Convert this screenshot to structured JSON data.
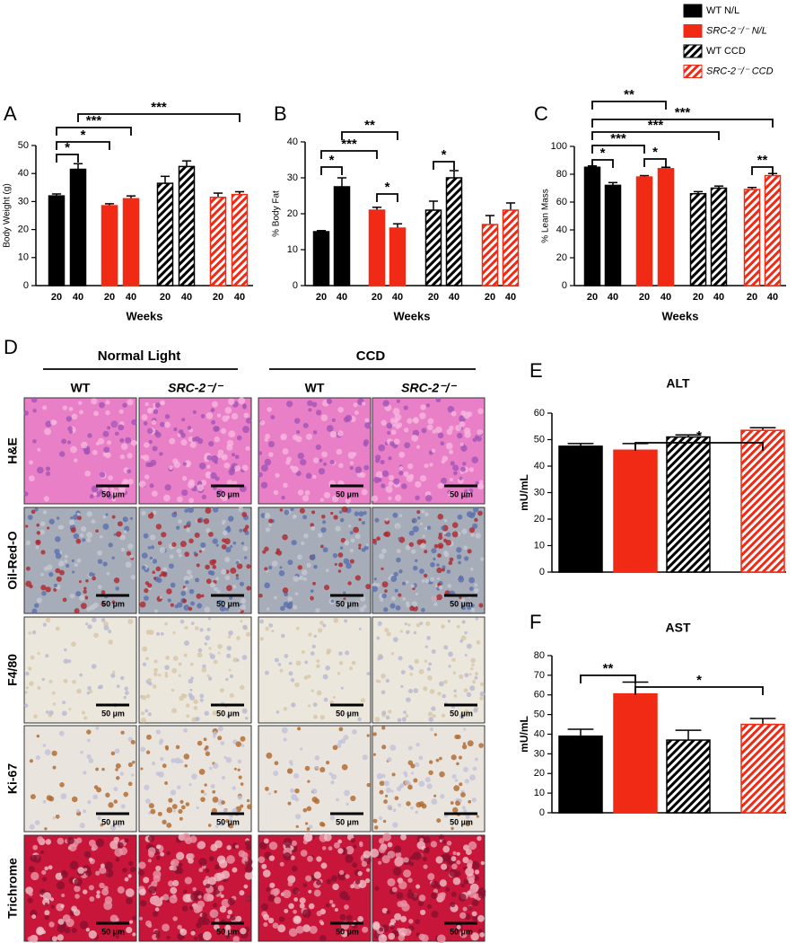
{
  "legend": [
    {
      "name": "WT N/L",
      "color": "#000000",
      "hatch": false
    },
    {
      "name": "SRC-2⁻/⁻ N/L",
      "color": "#f02a14",
      "hatch": false
    },
    {
      "name": "WT CCD",
      "color": "#000000",
      "hatch": true
    },
    {
      "name": "SRC-2⁻/⁻ CCD",
      "color": "#f02a14",
      "hatch": true
    }
  ],
  "chart_data": [
    {
      "type": "bar",
      "panel": "A",
      "ylabel": "Body Weight (g)",
      "xlabel": "Weeks",
      "categories": [
        "20",
        "40"
      ],
      "ylim": [
        0,
        50
      ],
      "yticks": [
        0,
        10,
        20,
        30,
        40,
        50
      ],
      "series": [
        {
          "values": [
            32,
            41.5
          ],
          "errors": [
            0.7,
            2
          ]
        },
        {
          "values": [
            28.5,
            31
          ],
          "errors": [
            0.7,
            1
          ]
        },
        {
          "values": [
            36.5,
            42.5
          ],
          "errors": [
            2.5,
            2
          ]
        },
        {
          "values": [
            31.5,
            32.5
          ],
          "errors": [
            1.5,
            1
          ]
        }
      ],
      "annotations": [
        "*",
        "*",
        "***",
        "***"
      ]
    },
    {
      "type": "bar",
      "panel": "B",
      "ylabel": "% Body Fat",
      "xlabel": "Weeks",
      "categories": [
        "20",
        "40"
      ],
      "ylim": [
        0,
        40
      ],
      "yticks": [
        0,
        10,
        20,
        30,
        40
      ],
      "series": [
        {
          "values": [
            15,
            27.5
          ],
          "errors": [
            0.3,
            2.5
          ]
        },
        {
          "values": [
            21,
            16
          ],
          "errors": [
            0.8,
            1.2
          ]
        },
        {
          "values": [
            21,
            30
          ],
          "errors": [
            2.5,
            2
          ]
        },
        {
          "values": [
            17,
            21
          ],
          "errors": [
            2.5,
            2
          ]
        }
      ],
      "annotations": [
        "*",
        "***",
        "**",
        "*",
        "*"
      ]
    },
    {
      "type": "bar",
      "panel": "C",
      "ylabel": "% Lean Mass",
      "xlabel": "Weeks",
      "categories": [
        "20",
        "40"
      ],
      "ylim": [
        0,
        100
      ],
      "yticks": [
        0,
        20,
        40,
        60,
        80,
        100
      ],
      "series": [
        {
          "values": [
            85,
            72
          ],
          "errors": [
            1,
            2
          ]
        },
        {
          "values": [
            78,
            84
          ],
          "errors": [
            1,
            1
          ]
        },
        {
          "values": [
            66,
            70
          ],
          "errors": [
            1.5,
            1.5
          ]
        },
        {
          "values": [
            69,
            79
          ],
          "errors": [
            1.5,
            1.5
          ]
        }
      ],
      "annotations": [
        "**",
        "***",
        "***",
        "***",
        "*",
        "*",
        "**"
      ]
    },
    {
      "type": "simplebar",
      "panel": "E",
      "title": "ALT",
      "ylabel": "mU/mL",
      "ylim": [
        0,
        60
      ],
      "yticks": [
        0,
        10,
        20,
        30,
        40,
        50,
        60
      ],
      "values": [
        47.5,
        46,
        51,
        53.5
      ],
      "errors": [
        1,
        2.5,
        0.8,
        1
      ],
      "annotations": [
        "*"
      ]
    },
    {
      "type": "simplebar",
      "panel": "F",
      "title": "AST",
      "ylabel": "mU/mL",
      "ylim": [
        0,
        80
      ],
      "yticks": [
        0,
        10,
        20,
        30,
        40,
        50,
        60,
        70,
        80
      ],
      "values": [
        39,
        60.5,
        37,
        45
      ],
      "errors": [
        3.5,
        6,
        5,
        3
      ],
      "annotations": [
        "**",
        "*"
      ]
    }
  ],
  "panel_d": {
    "panel": "D",
    "groups": [
      "Normal Light",
      "CCD"
    ],
    "columns": [
      "WT",
      "SRC-2⁻/⁻",
      "WT",
      "SRC-2⁻/⁻"
    ],
    "rows": [
      "H&E",
      "Oil-Red-O",
      "F4/80",
      "Ki-67",
      "Trichrome"
    ],
    "scale_bar": "50 µm"
  }
}
